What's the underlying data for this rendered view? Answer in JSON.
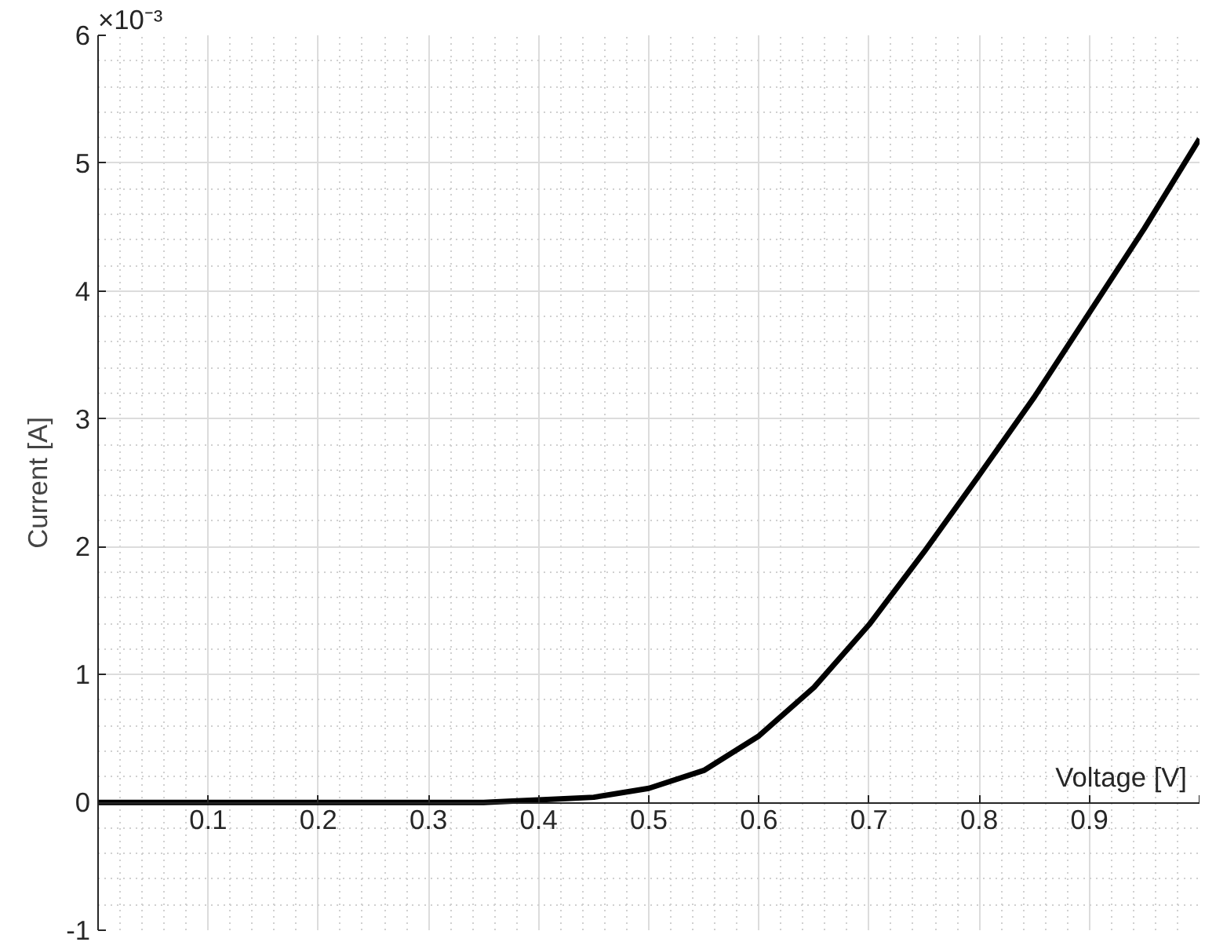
{
  "chart_data": {
    "type": "line",
    "xlabel": "Voltage [V]",
    "ylabel": "Current [A]",
    "annotations": [
      "×10⁻³"
    ],
    "x": [
      0,
      0.05,
      0.1,
      0.15,
      0.2,
      0.25,
      0.3,
      0.35,
      0.4,
      0.45,
      0.5,
      0.55,
      0.6,
      0.65,
      0.7,
      0.75,
      0.8,
      0.85,
      0.9,
      0.95,
      1.0
    ],
    "series": [
      {
        "color": "#000000",
        "values": [
          0,
          0,
          0,
          0,
          0,
          0,
          0,
          0,
          0.02,
          0.04,
          0.11,
          0.25,
          0.52,
          0.9,
          1.39,
          1.96,
          2.56,
          3.17,
          3.83,
          4.49,
          5.19
        ]
      }
    ],
    "xlim": [
      0,
      1
    ],
    "ylim": [
      -1,
      6
    ],
    "xticks": [
      {
        "value": 0,
        "label": null
      },
      0.1,
      0.2,
      0.3,
      0.4,
      0.5,
      0.6,
      0.7,
      0.8,
      0.9,
      {
        "value": 1,
        "label": null
      }
    ],
    "yticks": [
      -1,
      0,
      1,
      2,
      3,
      4,
      5,
      6
    ],
    "grid": true,
    "marker": "none",
    "line_style": "solid"
  }
}
